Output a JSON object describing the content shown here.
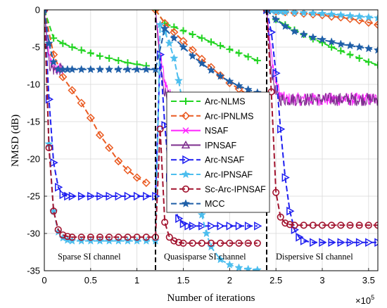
{
  "chart_data": {
    "type": "line",
    "xlabel": "Number of iterations",
    "ylabel": "NMSD (dB)",
    "x_multiplier": "×10",
    "x_multiplier_exp": "5",
    "xlim": [
      0,
      3.6
    ],
    "ylim": [
      -35,
      0
    ],
    "xticks": [
      "0",
      "0.5",
      "1",
      "1.5",
      "2",
      "2.5",
      "3",
      "3.5"
    ],
    "xtick_values": [
      0,
      0.5,
      1,
      1.5,
      2,
      2.5,
      3,
      3.5
    ],
    "yticks": [
      "0",
      "-5",
      "-10",
      "-15",
      "-20",
      "-25",
      "-30",
      "-35"
    ],
    "ytick_values": [
      0,
      -5,
      -10,
      -15,
      -20,
      -25,
      -30,
      -35
    ],
    "grid": true,
    "legend_position": "right-center",
    "change_points": [
      1.2,
      2.4
    ],
    "annotations": [
      "Sparse SI channel",
      "Quasisparse SI channel",
      "Dispersive  SI channel"
    ],
    "series": [
      {
        "name": "Arc-NLMS",
        "color": "#22d422",
        "marker": "plus",
        "dash": "8,4",
        "x": [
          0,
          0.1,
          0.2,
          0.3,
          0.4,
          0.5,
          0.6,
          0.7,
          0.8,
          0.9,
          1.0,
          1.1,
          1.2,
          1.3,
          1.4,
          1.5,
          1.6,
          1.7,
          1.8,
          1.9,
          2.0,
          2.1,
          2.2,
          2.3,
          2.4,
          2.5,
          2.6,
          2.7,
          2.8,
          2.9,
          3.0,
          3.1,
          3.2,
          3.3,
          3.4,
          3.5,
          3.6
        ],
        "y": [
          0,
          -3.8,
          -4.5,
          -5.0,
          -5.4,
          -5.8,
          -6.2,
          -6.5,
          -6.8,
          -7.1,
          -7.3,
          -7.5,
          0,
          -1.8,
          -2.3,
          -2.8,
          -3.3,
          -3.8,
          -4.3,
          -4.8,
          -5.3,
          -5.8,
          -6.3,
          -6.8,
          0,
          -1.3,
          -2.0,
          -2.7,
          -3.3,
          -3.9,
          -4.4,
          -5.0,
          -5.5,
          -6.0,
          -6.5,
          -7.0,
          -7.4
        ]
      },
      {
        "name": "Arc-IPNLMS",
        "color": "#ea5b22",
        "marker": "diamond",
        "dash": "8,4",
        "x": [
          0,
          0.1,
          0.2,
          0.3,
          0.4,
          0.5,
          0.6,
          0.7,
          0.8,
          0.9,
          1.0,
          1.1,
          1.2,
          1.3,
          1.4,
          1.5,
          1.6,
          1.7,
          1.8,
          1.9,
          2.0,
          2.1,
          2.2,
          2.3,
          2.4,
          2.5,
          2.6,
          2.7,
          2.8,
          2.9,
          3.0,
          3.1,
          3.2,
          3.3,
          3.4,
          3.5,
          3.6
        ],
        "y": [
          0,
          -6.0,
          -9.0,
          -10.8,
          -12.5,
          -14.5,
          -16.8,
          -18.5,
          -20.3,
          -21.5,
          -22.5,
          -23.2,
          0,
          -1.8,
          -3.0,
          -4.2,
          -5.4,
          -6.6,
          -7.7,
          -8.8,
          -9.8,
          -10.6,
          -11.4,
          -12.0,
          0,
          -0.2,
          -0.3,
          -0.4,
          -0.5,
          -0.6,
          -0.7,
          -0.9,
          -1.0,
          -1.2,
          -1.4,
          -1.7,
          -2.0
        ]
      },
      {
        "name": "NSAF",
        "color": "#ff22ff",
        "marker": "x",
        "dash": "",
        "noisy": true,
        "x": [
          0,
          0.05,
          0.1,
          0.15,
          0.2,
          1.2,
          1.25,
          1.3,
          1.35,
          1.4,
          2.4,
          2.45,
          2.5,
          2.55,
          2.6,
          3.6
        ],
        "y": [
          0,
          -6.5,
          -7.6,
          -8.0,
          -8.0,
          0,
          -6.0,
          -9.5,
          -11.4,
          -11.8,
          0,
          -6.0,
          -9.8,
          -11.5,
          -12.0,
          -12.0
        ]
      },
      {
        "name": "IPNSAF",
        "color": "#7e2f8e",
        "marker": "triangle-up",
        "dash": "",
        "noisy": true,
        "x": [
          0,
          0.05,
          0.1,
          0.15,
          0.2,
          1.2,
          1.25,
          1.3,
          1.35,
          1.4,
          2.4,
          2.45,
          2.5,
          2.55,
          2.6,
          3.6
        ],
        "y": [
          0,
          -7.2,
          -8.0,
          -8.0,
          -8.0,
          0,
          -7.5,
          -11.0,
          -11.8,
          -11.9,
          0,
          -8.0,
          -11.3,
          -12.0,
          -12.0,
          -12.0
        ]
      },
      {
        "name": "Arc-NSAF",
        "color": "#1f1ff0",
        "marker": "triangle-right",
        "dash": "8,4",
        "x": [
          0,
          0.05,
          0.1,
          0.15,
          0.2,
          0.25,
          0.3,
          0.4,
          0.5,
          0.6,
          0.7,
          0.8,
          0.9,
          1.0,
          1.1,
          1.2,
          1.25,
          1.3,
          1.35,
          1.4,
          1.45,
          1.5,
          1.55,
          1.6,
          1.7,
          1.8,
          1.9,
          2.0,
          2.1,
          2.2,
          2.3,
          2.4,
          2.45,
          2.5,
          2.55,
          2.6,
          2.65,
          2.7,
          2.75,
          2.8,
          2.9,
          3.0,
          3.1,
          3.2,
          3.3,
          3.4,
          3.5,
          3.6
        ],
        "y": [
          0,
          -12.0,
          -20.5,
          -23.8,
          -24.8,
          -25.0,
          -25.0,
          -25.0,
          -25.0,
          -25.0,
          -25.0,
          -25.0,
          -25.0,
          -25.0,
          -25.0,
          -25.0,
          -6.0,
          -15.5,
          -22.5,
          -26.5,
          -28.0,
          -28.7,
          -29.0,
          -29.0,
          -29.0,
          -29.0,
          -29.0,
          -29.0,
          -29.0,
          -29.0,
          -29.0,
          0,
          -3.0,
          -8.5,
          -16.0,
          -22.5,
          -27.0,
          -29.5,
          -30.5,
          -31.0,
          -31.2,
          -31.2,
          -31.2,
          -31.2,
          -31.2,
          -31.2,
          -31.2,
          -31.2
        ]
      },
      {
        "name": "Arc-IPNSAF",
        "color": "#4dbeee",
        "marker": "star",
        "dash": "8,4",
        "x": [
          0,
          0.05,
          0.1,
          0.15,
          0.2,
          0.25,
          0.3,
          0.4,
          0.5,
          0.6,
          0.7,
          0.8,
          0.9,
          1.0,
          1.1,
          1.2,
          1.25,
          1.3,
          1.35,
          1.4,
          1.45,
          1.5,
          1.55,
          1.6,
          1.65,
          1.7,
          1.75,
          1.8,
          1.9,
          2.0,
          2.1,
          2.2,
          2.3,
          2.4,
          2.45,
          2.5,
          2.55,
          2.6,
          2.7,
          2.8,
          2.9,
          3.0,
          3.1,
          3.2,
          3.3,
          3.4,
          3.5,
          3.6
        ],
        "y": [
          0,
          -18.0,
          -27.0,
          -29.8,
          -30.6,
          -30.9,
          -31.0,
          -31.0,
          -31.0,
          -31.0,
          -31.0,
          -31.0,
          -31.0,
          -31.0,
          -31.0,
          -31.0,
          -2.0,
          -3.0,
          -4.5,
          -6.5,
          -9.5,
          -13.0,
          -17.0,
          -21.0,
          -24.5,
          -27.5,
          -30.0,
          -31.8,
          -33.5,
          -34.2,
          -34.6,
          -34.8,
          -34.9,
          0,
          -0.1,
          -0.2,
          -0.25,
          -0.3,
          -0.35,
          -0.4,
          -0.45,
          -0.5,
          -0.6,
          -0.7,
          -0.8,
          -0.9,
          -1.0,
          -1.1
        ]
      },
      {
        "name": "Sc-Arc-IPNSAF",
        "color": "#a2142f",
        "marker": "circle",
        "dash": "8,4",
        "x": [
          0,
          0.05,
          0.1,
          0.15,
          0.2,
          0.25,
          0.3,
          0.4,
          0.5,
          0.6,
          0.7,
          0.8,
          0.9,
          1.0,
          1.1,
          1.2,
          1.25,
          1.3,
          1.35,
          1.4,
          1.45,
          1.5,
          1.6,
          1.7,
          1.8,
          1.9,
          2.0,
          2.1,
          2.2,
          2.3,
          2.4,
          2.45,
          2.5,
          2.55,
          2.6,
          2.65,
          2.7,
          2.8,
          2.9,
          3.0,
          3.1,
          3.2,
          3.3,
          3.4,
          3.5,
          3.6
        ],
        "y": [
          0,
          -18.5,
          -27.0,
          -29.5,
          -30.2,
          -30.4,
          -30.5,
          -30.5,
          -30.5,
          -30.5,
          -30.5,
          -30.5,
          -30.5,
          -30.5,
          -30.5,
          -30.5,
          -16.0,
          -28.5,
          -30.5,
          -31.0,
          -31.2,
          -31.3,
          -31.3,
          -31.3,
          -31.3,
          -31.3,
          -31.3,
          -31.3,
          -31.3,
          -31.3,
          0,
          -11.0,
          -24.5,
          -27.8,
          -28.6,
          -28.8,
          -28.9,
          -28.9,
          -28.9,
          -28.9,
          -28.9,
          -28.9,
          -28.9,
          -28.9,
          -28.9,
          -28.9
        ]
      },
      {
        "name": "MCC",
        "color": "#1f5fa8",
        "marker": "star",
        "dash": "8,4",
        "x": [
          0,
          0.05,
          0.1,
          0.15,
          0.2,
          0.25,
          0.3,
          0.4,
          0.5,
          0.6,
          0.7,
          0.8,
          0.9,
          1.0,
          1.1,
          1.2,
          1.3,
          1.4,
          1.5,
          1.6,
          1.7,
          1.8,
          1.9,
          2.0,
          2.1,
          2.2,
          2.3,
          2.4,
          2.5,
          2.6,
          2.7,
          2.8,
          2.9,
          3.0,
          3.1,
          3.2,
          3.3,
          3.4,
          3.5,
          3.6
        ],
        "y": [
          0,
          -4.5,
          -7.0,
          -8.0,
          -8.0,
          -8.0,
          -8.0,
          -8.0,
          -8.0,
          -8.0,
          -8.0,
          -8.0,
          -8.0,
          -8.0,
          -8.0,
          -8.0,
          -2.5,
          -3.8,
          -5.0,
          -6.2,
          -7.2,
          -8.1,
          -8.9,
          -9.6,
          -10.2,
          -10.7,
          -11.1,
          0,
          -1.3,
          -2.2,
          -2.9,
          -3.3,
          -3.7,
          -4.0,
          -4.3,
          -4.6,
          -4.8,
          -5.0,
          -5.2,
          -5.4
        ]
      }
    ]
  }
}
